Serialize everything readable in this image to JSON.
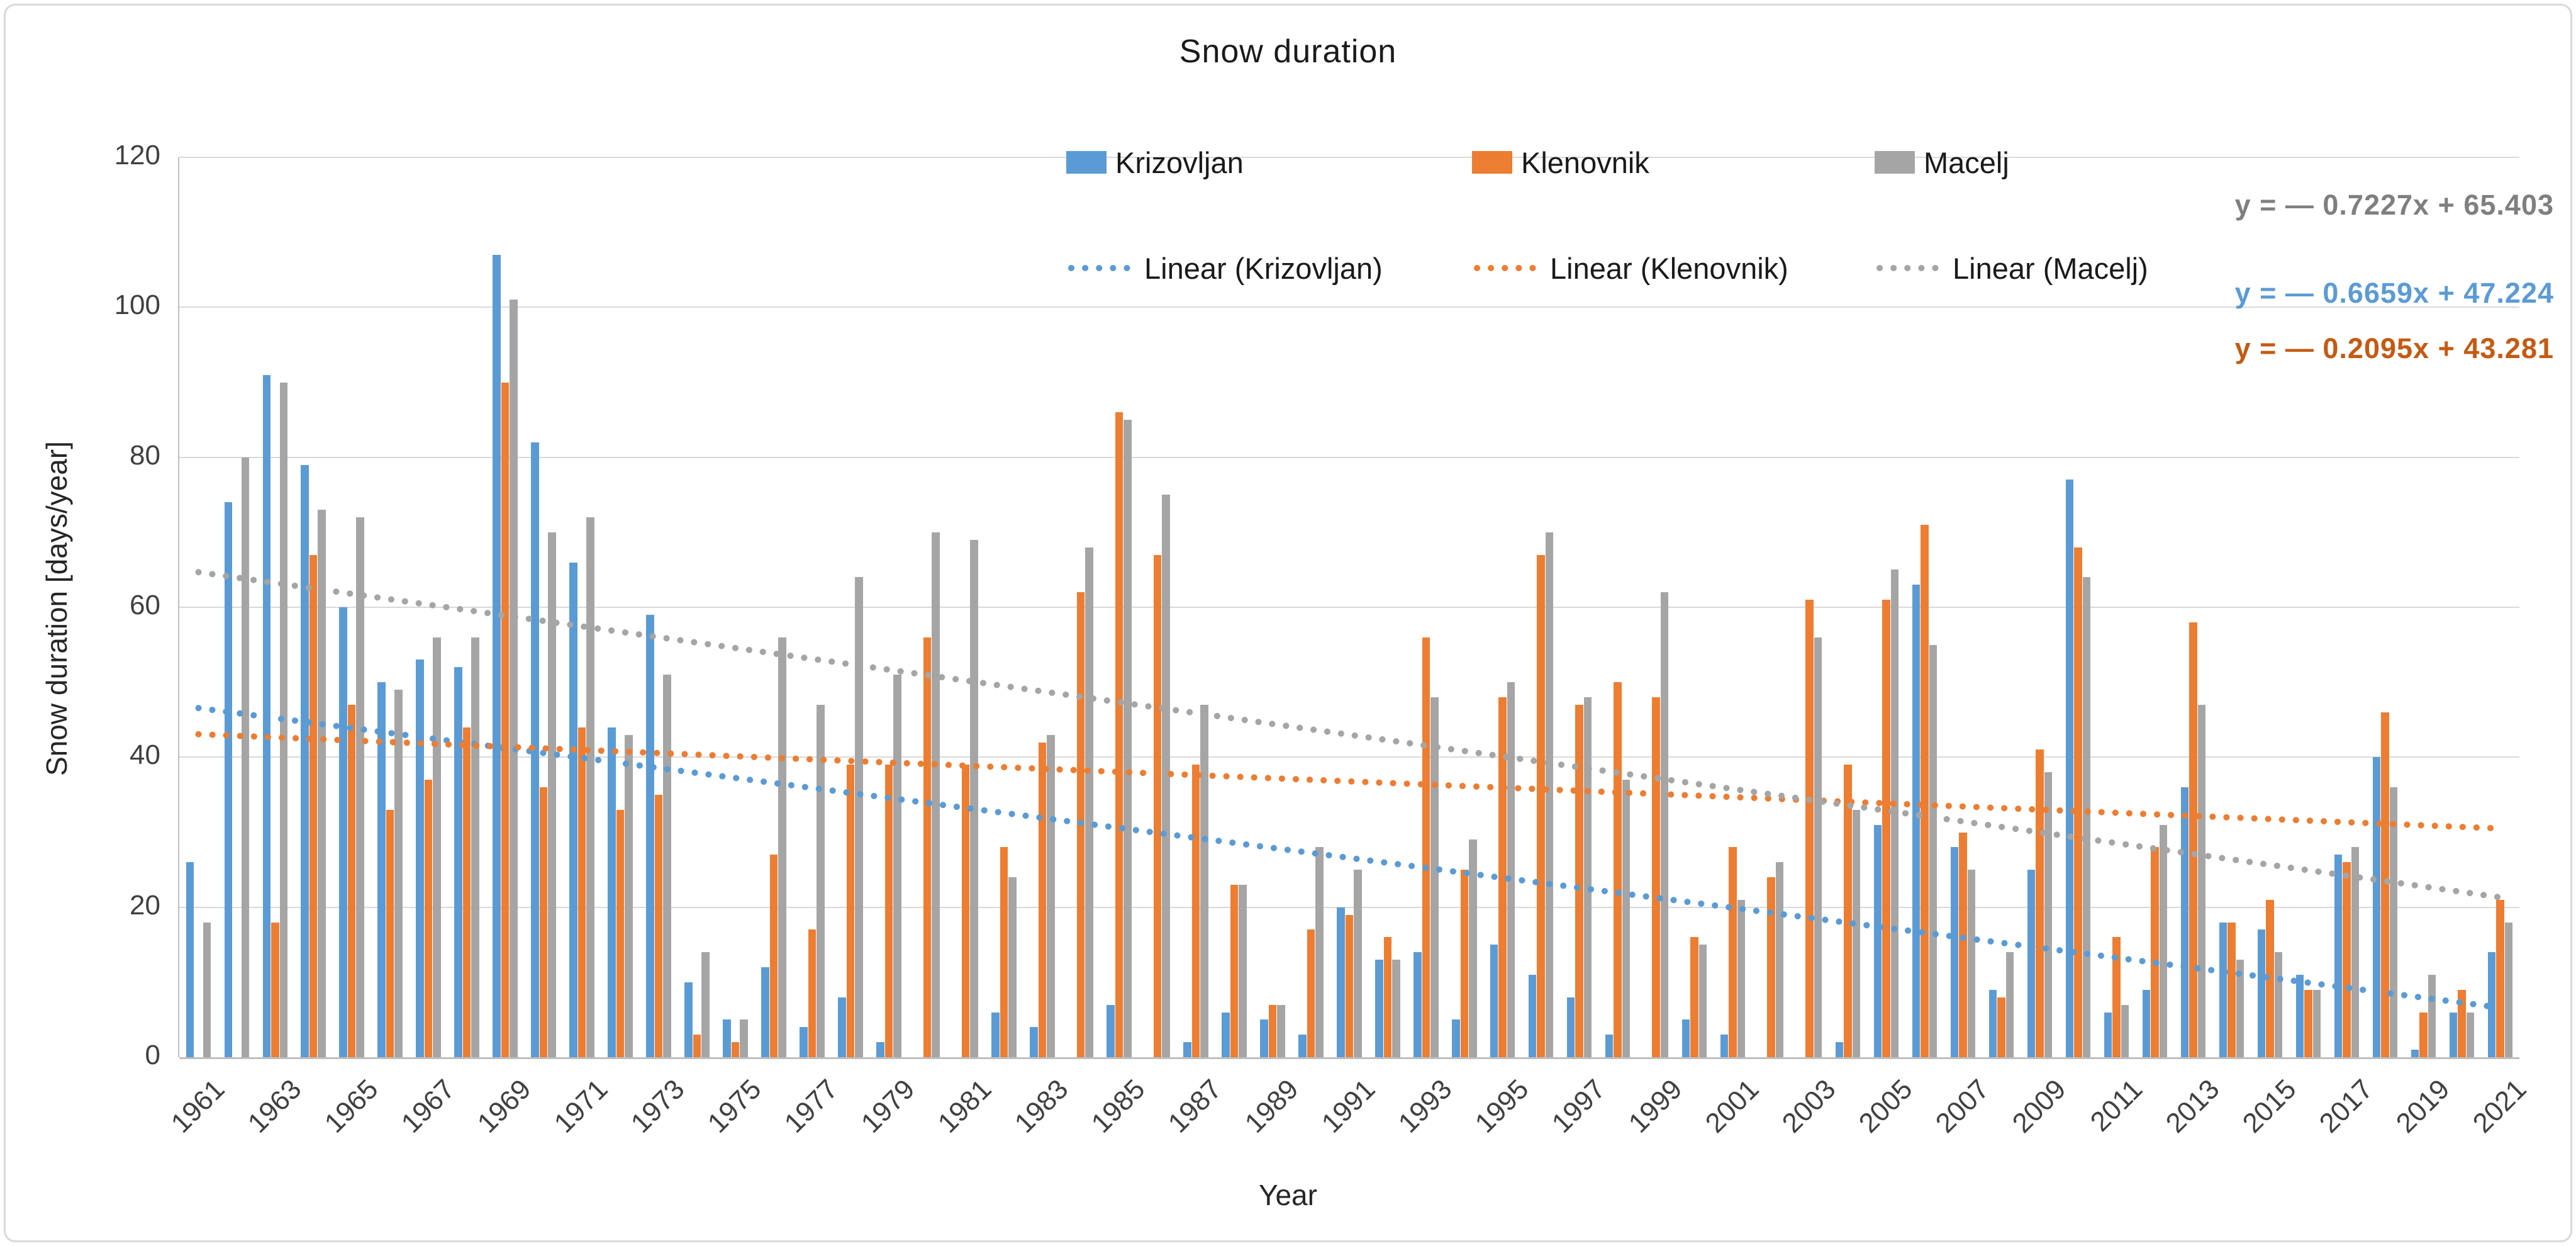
{
  "chart_data": {
    "type": "bar",
    "title": "Snow duration",
    "xlabel": "Year",
    "ylabel": "Snow duration [days/year]",
    "ylim": [
      0,
      120
    ],
    "y_ticks": [
      0,
      20,
      40,
      60,
      80,
      100,
      120
    ],
    "x_tick_step": 2,
    "grid": true,
    "legend_position": "top",
    "categories": [
      1961,
      1962,
      1963,
      1964,
      1965,
      1966,
      1967,
      1968,
      1969,
      1970,
      1971,
      1972,
      1973,
      1974,
      1975,
      1976,
      1977,
      1978,
      1979,
      1980,
      1981,
      1982,
      1983,
      1984,
      1985,
      1986,
      1987,
      1988,
      1989,
      1990,
      1991,
      1992,
      1993,
      1994,
      1995,
      1996,
      1997,
      1998,
      1999,
      2000,
      2001,
      2002,
      2003,
      2004,
      2005,
      2006,
      2007,
      2008,
      2009,
      2010,
      2011,
      2012,
      2013,
      2014,
      2015,
      2016,
      2017,
      2018,
      2019,
      2020,
      2021
    ],
    "series": [
      {
        "name": "Krizovljan",
        "color": "#5B9BD5",
        "values": [
          26,
          74,
          91,
          79,
          60,
          50,
          53,
          52,
          107,
          82,
          66,
          44,
          59,
          10,
          5,
          12,
          4,
          8,
          2,
          0,
          0,
          6,
          4,
          0,
          7,
          0,
          2,
          6,
          5,
          3,
          20,
          13,
          14,
          5,
          15,
          11,
          8,
          3,
          0,
          5,
          3,
          0,
          0,
          2,
          31,
          63,
          28,
          9,
          25,
          77,
          6,
          9,
          36,
          18,
          17,
          11,
          27,
          40,
          1,
          6,
          14
        ]
      },
      {
        "name": "Klenovnik",
        "color": "#ED7D31",
        "values": [
          0,
          0,
          18,
          67,
          47,
          33,
          37,
          44,
          90,
          36,
          44,
          33,
          35,
          3,
          2,
          27,
          17,
          39,
          39,
          56,
          39,
          28,
          42,
          62,
          86,
          67,
          39,
          23,
          7,
          17,
          19,
          16,
          56,
          25,
          48,
          67,
          47,
          50,
          48,
          16,
          28,
          24,
          61,
          39,
          61,
          71,
          30,
          8,
          41,
          68,
          16,
          28,
          58,
          18,
          21,
          9,
          26,
          46,
          6,
          9,
          21
        ]
      },
      {
        "name": "Macelj",
        "color": "#A5A5A5",
        "values": [
          18,
          80,
          90,
          73,
          72,
          49,
          56,
          56,
          101,
          70,
          72,
          43,
          51,
          14,
          5,
          56,
          47,
          64,
          51,
          70,
          69,
          24,
          43,
          68,
          85,
          75,
          47,
          23,
          7,
          28,
          25,
          13,
          48,
          29,
          50,
          70,
          48,
          37,
          62,
          15,
          21,
          26,
          56,
          33,
          65,
          55,
          25,
          14,
          38,
          64,
          7,
          31,
          47,
          13,
          14,
          9,
          28,
          36,
          11,
          6,
          18
        ]
      }
    ],
    "trendlines": [
      {
        "name": "Linear (Krizovljan)",
        "series": "Krizovljan",
        "color": "#5B9BD5",
        "slope": -0.6659,
        "intercept": 47.224,
        "equation": "y = — 0.6659x + 47.224",
        "equation_color": "#5B9BD5"
      },
      {
        "name": "Linear (Klenovnik)",
        "series": "Klenovnik",
        "color": "#ED7D31",
        "slope": -0.2095,
        "intercept": 43.281,
        "equation": "y = — 0.2095x + 43.281",
        "equation_color": "#C55A11"
      },
      {
        "name": "Linear (Macelj)",
        "series": "Macelj",
        "color": "#A5A5A5",
        "slope": -0.7227,
        "intercept": 65.403,
        "equation": "y = — 0.7227x + 65.403",
        "equation_color": "#7F7F7F"
      }
    ],
    "equation_display_order": [
      "Linear (Macelj)",
      "Linear (Krizovljan)",
      "Linear (Klenovnik)"
    ],
    "legend": {
      "series_labels": [
        "Krizovljan",
        "Klenovnik",
        "Macelj"
      ],
      "linear_labels": [
        "Linear (Krizovljan)",
        "Linear (Klenovnik)",
        "Linear (Macelj)"
      ]
    }
  }
}
